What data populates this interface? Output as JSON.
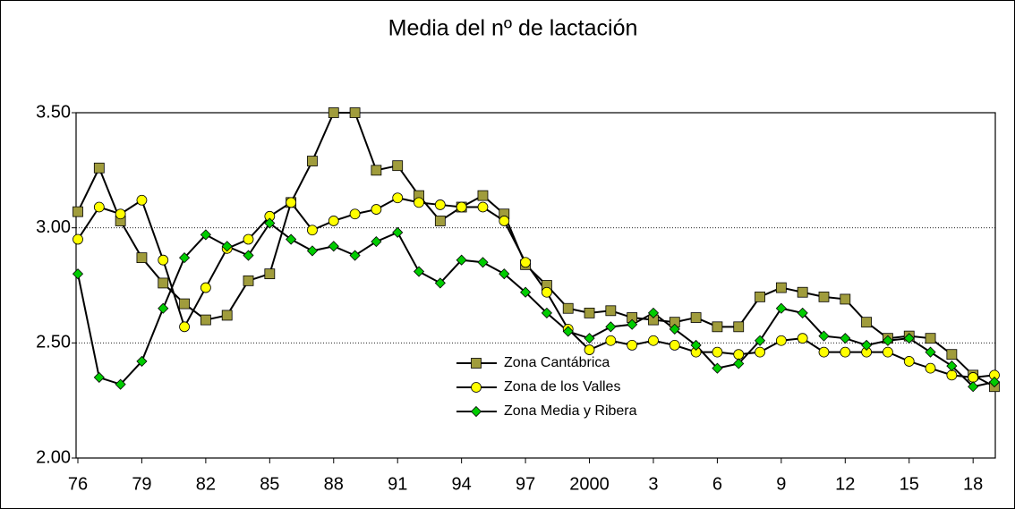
{
  "chart_data": {
    "type": "line",
    "title": "Media del nº de lactación",
    "categories": [
      "76",
      null,
      null,
      "79",
      null,
      null,
      "82",
      null,
      null,
      "85",
      null,
      null,
      "88",
      null,
      null,
      "91",
      null,
      null,
      "94",
      null,
      null,
      "97",
      null,
      null,
      "2000",
      null,
      null,
      "3",
      null,
      null,
      "6",
      null,
      null,
      "9",
      null,
      null,
      "12",
      null,
      null,
      "15",
      null,
      null,
      "18",
      null
    ],
    "ylim": [
      2.0,
      3.5
    ],
    "yticks": [
      {
        "value": 2.0,
        "label": "2.00"
      },
      {
        "value": 2.5,
        "label": "2.50"
      },
      {
        "value": 3.0,
        "label": "3.00"
      },
      {
        "value": 3.5,
        "label": "3.50"
      }
    ],
    "grid": true,
    "line_color": "#000000",
    "series": [
      {
        "name": "Zona Cantábrica",
        "color": "#a09c3c",
        "marker": "square",
        "values": [
          3.07,
          3.26,
          3.03,
          2.87,
          2.76,
          2.67,
          2.6,
          2.62,
          2.77,
          2.8,
          3.11,
          3.29,
          3.5,
          3.5,
          3.25,
          3.27,
          3.14,
          3.03,
          3.09,
          3.14,
          3.06,
          2.84,
          2.75,
          2.65,
          2.63,
          2.64,
          2.61,
          2.6,
          2.59,
          2.61,
          2.57,
          2.57,
          2.7,
          2.74,
          2.72,
          2.7,
          2.69,
          2.59,
          2.52,
          2.53,
          2.52,
          2.45,
          2.36,
          2.31
        ]
      },
      {
        "name": "Zona de los Valles",
        "color": "#ffff00",
        "marker": "circle",
        "values": [
          2.95,
          3.09,
          3.06,
          3.12,
          2.86,
          2.57,
          2.74,
          2.91,
          2.95,
          3.05,
          3.11,
          2.99,
          3.03,
          3.06,
          3.08,
          3.13,
          3.11,
          3.1,
          3.09,
          3.09,
          3.03,
          2.85,
          2.72,
          2.56,
          2.47,
          2.51,
          2.49,
          2.51,
          2.49,
          2.46,
          2.46,
          2.45,
          2.46,
          2.51,
          2.52,
          2.46,
          2.46,
          2.46,
          2.46,
          2.42,
          2.39,
          2.36,
          2.35,
          2.36
        ]
      },
      {
        "name": "Zona Media y Ribera",
        "color": "#00cc00",
        "marker": "diamond",
        "values": [
          2.8,
          2.35,
          2.32,
          2.42,
          2.65,
          2.87,
          2.97,
          2.92,
          2.88,
          3.02,
          2.95,
          2.9,
          2.92,
          2.88,
          2.94,
          2.98,
          2.81,
          2.76,
          2.86,
          2.85,
          2.8,
          2.72,
          2.63,
          2.55,
          2.52,
          2.57,
          2.58,
          2.63,
          2.56,
          2.49,
          2.39,
          2.41,
          2.51,
          2.65,
          2.63,
          2.53,
          2.52,
          2.49,
          2.51,
          2.52,
          2.46,
          2.4,
          2.31,
          2.33
        ]
      }
    ]
  }
}
